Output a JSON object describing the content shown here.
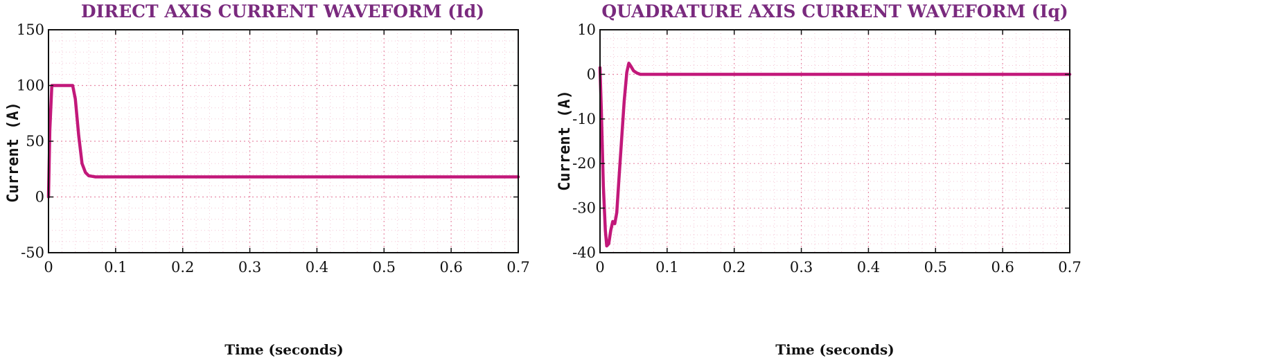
{
  "colors": {
    "title": "#7a2a7e",
    "series": "#c2187a",
    "grid_major": "#e88aa6",
    "grid_minor": "#f3c3d3",
    "axes": "#111111"
  },
  "chart_data": [
    {
      "type": "line",
      "title": "DIRECT AXIS CURRENT WAVEFORM (Id)",
      "xlabel": "Time (seconds)",
      "ylabel": "Current (A)",
      "xlim": [
        0,
        0.7
      ],
      "ylim": [
        -50,
        150
      ],
      "xticks": [
        0,
        0.1,
        0.2,
        0.3,
        0.4,
        0.5,
        0.6,
        0.7
      ],
      "xtick_labels": [
        "0",
        "0.1",
        "0.2",
        "0.3",
        "0.4",
        "0.5",
        "0.6",
        "0.7"
      ],
      "yticks": [
        -50,
        0,
        50,
        100,
        150
      ],
      "ytick_labels": [
        "-50",
        "0",
        "50",
        "100",
        "150"
      ],
      "grid": true,
      "minor_grid": true,
      "series": [
        {
          "x": [
            0,
            0.002,
            0.005,
            0.01,
            0.02,
            0.03,
            0.036,
            0.04,
            0.045,
            0.05,
            0.055,
            0.06,
            0.065,
            0.07,
            0.1,
            0.2,
            0.3,
            0.4,
            0.5,
            0.6,
            0.7
          ],
          "y": [
            0,
            60,
            100,
            100,
            100,
            100,
            100,
            88,
            55,
            30,
            22,
            19,
            18.5,
            18,
            18,
            18,
            18,
            18,
            18,
            18,
            18
          ]
        }
      ]
    },
    {
      "type": "line",
      "title": "QUADRATURE AXIS CURRENT WAVEFORM (Iq)",
      "xlabel": "Time (seconds)",
      "ylabel": "Current (A)",
      "xlim": [
        0,
        0.7
      ],
      "ylim": [
        -40,
        10
      ],
      "xticks": [
        0,
        0.1,
        0.2,
        0.3,
        0.4,
        0.5,
        0.6,
        0.7
      ],
      "xtick_labels": [
        "0",
        "0.1",
        "0.2",
        "0.3",
        "0.4",
        "0.5",
        "0.6",
        "0.7"
      ],
      "yticks": [
        -40,
        -30,
        -20,
        -10,
        0,
        10
      ],
      "ytick_labels": [
        "-40",
        "-30",
        "-20",
        "-10",
        "0",
        "10"
      ],
      "grid": true,
      "minor_grid": true,
      "series": [
        {
          "x": [
            0,
            0.002,
            0.005,
            0.008,
            0.01,
            0.013,
            0.016,
            0.019,
            0.022,
            0.025,
            0.028,
            0.032,
            0.036,
            0.04,
            0.043,
            0.046,
            0.05,
            0.055,
            0.06,
            0.07,
            0.1,
            0.2,
            0.3,
            0.4,
            0.5,
            0.6,
            0.7
          ],
          "y": [
            1.5,
            -8,
            -25,
            -35,
            -38.5,
            -38,
            -35,
            -33,
            -33.5,
            -31,
            -24,
            -15,
            -6,
            0.5,
            2.5,
            1.8,
            0.8,
            0.3,
            0,
            0,
            0,
            0,
            0,
            0,
            0,
            0,
            0
          ]
        }
      ]
    }
  ]
}
